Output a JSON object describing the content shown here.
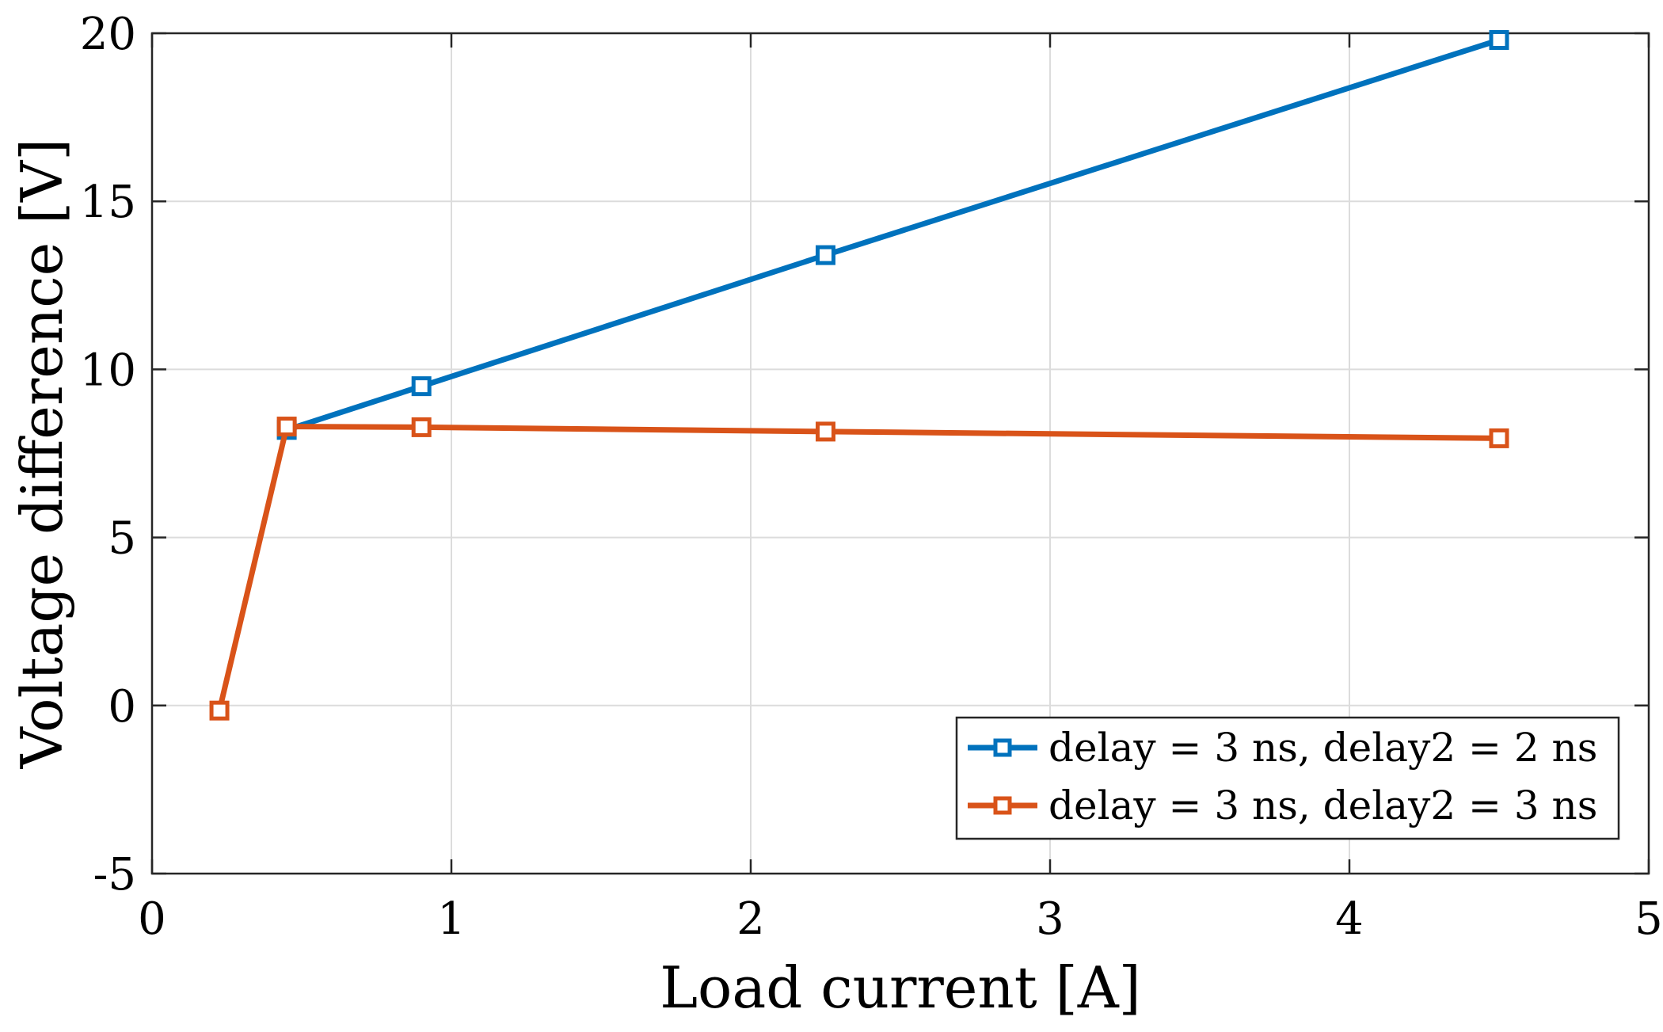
{
  "chart_data": {
    "type": "line",
    "title": "",
    "xlabel": "Load current [A]",
    "ylabel": "Voltage difference [V]",
    "xlim": [
      0,
      5
    ],
    "ylim": [
      -5,
      20
    ],
    "xticks": [
      0,
      1,
      2,
      3,
      4,
      5
    ],
    "yticks": [
      -5,
      0,
      5,
      10,
      15,
      20
    ],
    "xtick_labels": [
      "0",
      "1",
      "2",
      "3",
      "4",
      "5"
    ],
    "ytick_labels": [
      "-5",
      "0",
      "5",
      "10",
      "15",
      "20"
    ],
    "grid": true,
    "legend_position": "bottom-right",
    "series": [
      {
        "name": "delay = 3 ns, delay2 = 2 ns",
        "color": "#0072BD",
        "marker": "square",
        "x": [
          0.45,
          0.9,
          2.25,
          4.5
        ],
        "y": [
          8.2,
          9.5,
          13.4,
          19.8
        ]
      },
      {
        "name": "delay = 3 ns, delay2 = 3 ns",
        "color": "#D95319",
        "marker": "square",
        "x": [
          0.225,
          0.45,
          0.9,
          2.25,
          4.5
        ],
        "y": [
          -0.15,
          8.3,
          8.28,
          8.15,
          7.95
        ]
      }
    ]
  }
}
